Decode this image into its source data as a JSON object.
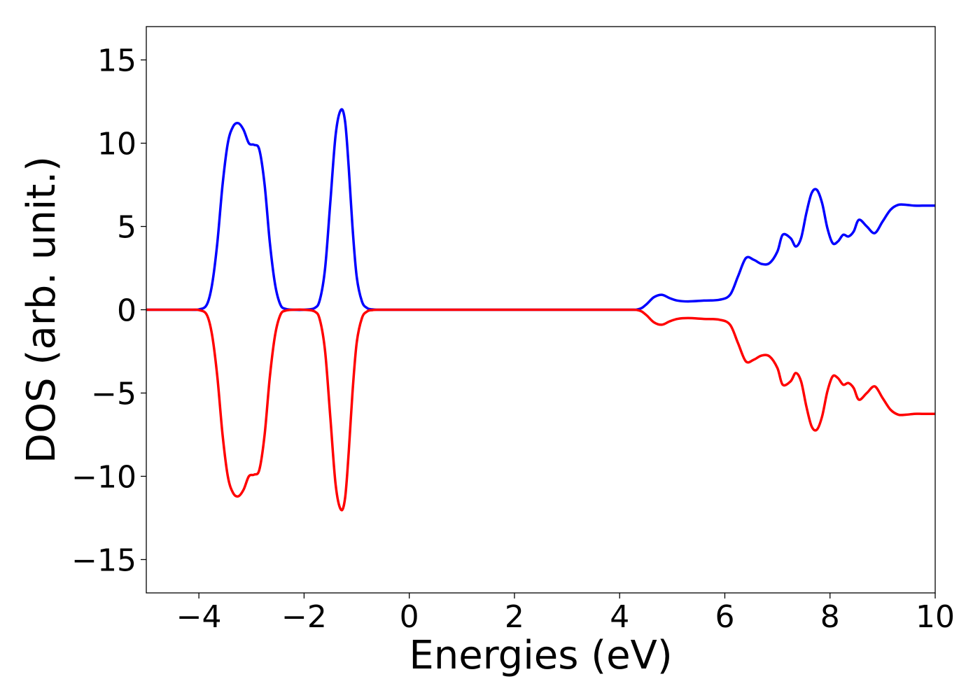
{
  "chart_data": {
    "type": "line",
    "title": "",
    "xlabel": "Energies (eV)",
    "ylabel": "DOS (arb. unit.)",
    "xlim": [
      -5,
      10
    ],
    "ylim": [
      -17,
      17
    ],
    "xticks": [
      -4,
      -2,
      0,
      2,
      4,
      6,
      8,
      10
    ],
    "yticks": [
      -15,
      -10,
      -5,
      0,
      5,
      10,
      15
    ],
    "xtick_labels": [
      "−4",
      "−2",
      "0",
      "2",
      "4",
      "6",
      "8",
      "10"
    ],
    "ytick_labels": [
      "−15",
      "−10",
      "−5",
      "0",
      "5",
      "10",
      "15"
    ],
    "grid": false,
    "series": [
      {
        "color": "#0000ff",
        "x": [
          -5.0,
          -4.2,
          -4.0,
          -3.85,
          -3.75,
          -3.65,
          -3.55,
          -3.45,
          -3.35,
          -3.25,
          -3.15,
          -3.05,
          -2.95,
          -2.85,
          -2.75,
          -2.65,
          -2.55,
          -2.45,
          -2.35,
          -2.2,
          -2.0,
          -1.8,
          -1.7,
          -1.6,
          -1.5,
          -1.4,
          -1.3,
          -1.22,
          -1.15,
          -1.08,
          -1.0,
          -0.9,
          -0.8,
          -0.7,
          -0.6,
          -0.5,
          0.0,
          2.0,
          4.0,
          4.35,
          4.5,
          4.65,
          4.8,
          4.95,
          5.1,
          5.3,
          5.6,
          5.9,
          6.1,
          6.25,
          6.4,
          6.55,
          6.7,
          6.85,
          7.0,
          7.1,
          7.25,
          7.35,
          7.45,
          7.55,
          7.65,
          7.75,
          7.85,
          7.95,
          8.05,
          8.15,
          8.25,
          8.35,
          8.45,
          8.55,
          8.7,
          8.85,
          9.0,
          9.15,
          9.3,
          9.45,
          9.6,
          9.75,
          9.9,
          10.0
        ],
        "y": [
          0.0,
          0.0,
          0.02,
          0.3,
          1.5,
          4.0,
          7.5,
          10.0,
          11.0,
          11.2,
          10.8,
          10.0,
          9.9,
          9.6,
          7.5,
          4.0,
          1.5,
          0.3,
          0.05,
          0.0,
          0.0,
          0.1,
          0.6,
          2.5,
          6.5,
          10.5,
          12.0,
          11.3,
          8.5,
          5.0,
          2.0,
          0.5,
          0.1,
          0.02,
          0.0,
          0.0,
          0.0,
          0.0,
          0.0,
          0.03,
          0.3,
          0.75,
          0.9,
          0.7,
          0.55,
          0.5,
          0.55,
          0.6,
          0.9,
          2.0,
          3.1,
          3.0,
          2.75,
          2.8,
          3.5,
          4.5,
          4.3,
          3.8,
          4.3,
          5.8,
          7.0,
          7.2,
          6.4,
          4.9,
          4.0,
          4.1,
          4.5,
          4.4,
          4.7,
          5.4,
          5.0,
          4.6,
          5.3,
          6.0,
          6.3,
          6.3,
          6.25,
          6.25,
          6.25,
          6.25
        ]
      },
      {
        "color": "#ff0000",
        "x": [
          -5.0,
          -4.2,
          -4.0,
          -3.85,
          -3.75,
          -3.65,
          -3.55,
          -3.45,
          -3.35,
          -3.25,
          -3.15,
          -3.05,
          -2.95,
          -2.85,
          -2.75,
          -2.65,
          -2.55,
          -2.45,
          -2.35,
          -2.2,
          -2.0,
          -1.8,
          -1.7,
          -1.6,
          -1.5,
          -1.4,
          -1.3,
          -1.22,
          -1.15,
          -1.08,
          -1.0,
          -0.9,
          -0.8,
          -0.7,
          -0.6,
          -0.5,
          0.0,
          2.0,
          4.0,
          4.35,
          4.5,
          4.65,
          4.8,
          4.95,
          5.1,
          5.3,
          5.6,
          5.9,
          6.1,
          6.25,
          6.4,
          6.55,
          6.7,
          6.85,
          7.0,
          7.1,
          7.25,
          7.35,
          7.45,
          7.55,
          7.65,
          7.75,
          7.85,
          7.95,
          8.05,
          8.15,
          8.25,
          8.35,
          8.45,
          8.55,
          8.7,
          8.85,
          9.0,
          9.15,
          9.3,
          9.45,
          9.6,
          9.75,
          9.9,
          10.0
        ],
        "y": [
          0.0,
          0.0,
          -0.02,
          -0.3,
          -1.5,
          -4.0,
          -7.5,
          -10.0,
          -11.0,
          -11.2,
          -10.8,
          -10.0,
          -9.9,
          -9.6,
          -7.5,
          -4.0,
          -1.5,
          -0.3,
          -0.05,
          0.0,
          0.0,
          -0.1,
          -0.6,
          -2.5,
          -6.5,
          -10.5,
          -12.0,
          -11.3,
          -8.5,
          -5.0,
          -2.0,
          -0.5,
          -0.1,
          -0.02,
          0.0,
          0.0,
          0.0,
          0.0,
          0.0,
          -0.03,
          -0.3,
          -0.75,
          -0.9,
          -0.7,
          -0.55,
          -0.5,
          -0.55,
          -0.6,
          -0.9,
          -2.0,
          -3.1,
          -3.0,
          -2.75,
          -2.8,
          -3.5,
          -4.5,
          -4.3,
          -3.8,
          -4.3,
          -5.8,
          -7.0,
          -7.2,
          -6.4,
          -4.9,
          -4.0,
          -4.1,
          -4.5,
          -4.4,
          -4.7,
          -5.4,
          -5.0,
          -4.6,
          -5.3,
          -6.0,
          -6.3,
          -6.3,
          -6.25,
          -6.25,
          -6.25,
          -6.25
        ]
      }
    ]
  }
}
